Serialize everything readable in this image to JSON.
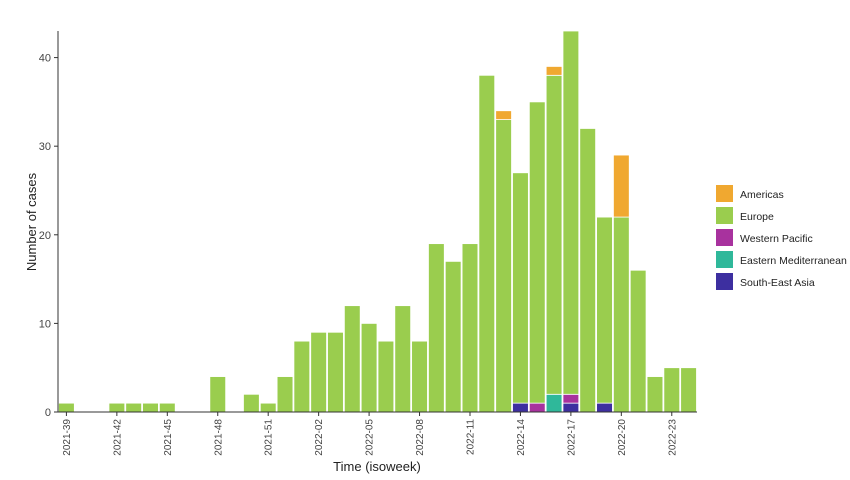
{
  "chart_data": {
    "type": "bar",
    "stacked": true,
    "xlabel": "Time (isoweek)",
    "ylabel": "Number of cases",
    "ylim": [
      0,
      43
    ],
    "yticks": [
      0,
      10,
      20,
      30,
      40
    ],
    "grid": false,
    "legend_position": "right",
    "categories": [
      "2021-39",
      "2021-40",
      "2021-41",
      "2021-42",
      "2021-43",
      "2021-44",
      "2021-45",
      "2021-46",
      "2021-47",
      "2021-48",
      "2021-49",
      "2021-50",
      "2021-51",
      "2021-52",
      "2022-01",
      "2022-02",
      "2022-03",
      "2022-04",
      "2022-05",
      "2022-06",
      "2022-07",
      "2022-08",
      "2022-09",
      "2022-10",
      "2022-11",
      "2022-12",
      "2022-13",
      "2022-14",
      "2022-15",
      "2022-16",
      "2022-17",
      "2022-18",
      "2022-19",
      "2022-20",
      "2022-21",
      "2022-22",
      "2022-23",
      "2022-24"
    ],
    "xtick_labels": [
      "2021-39",
      "2021-42",
      "2021-45",
      "2021-48",
      "2021-51",
      "2022-02",
      "2022-05",
      "2022-08",
      "2022-11",
      "2022-14",
      "2022-17",
      "2022-20",
      "2022-23"
    ],
    "series": [
      {
        "name": "South-East Asia",
        "color": "#3d2fa0",
        "values": [
          0,
          0,
          0,
          0,
          0,
          0,
          0,
          0,
          0,
          0,
          0,
          0,
          0,
          0,
          0,
          0,
          0,
          0,
          0,
          0,
          0,
          0,
          0,
          0,
          0,
          0,
          0,
          1,
          0,
          0,
          1,
          0,
          1,
          0,
          0,
          0,
          0,
          0
        ]
      },
      {
        "name": "Eastern Mediterranean",
        "color": "#2fb89a",
        "values": [
          0,
          0,
          0,
          0,
          0,
          0,
          0,
          0,
          0,
          0,
          0,
          0,
          0,
          0,
          0,
          0,
          0,
          0,
          0,
          0,
          0,
          0,
          0,
          0,
          0,
          0,
          0,
          0,
          0,
          2,
          0,
          0,
          0,
          0,
          0,
          0,
          0,
          0
        ]
      },
      {
        "name": "Western Pacific",
        "color": "#a8329e",
        "values": [
          0,
          0,
          0,
          0,
          0,
          0,
          0,
          0,
          0,
          0,
          0,
          0,
          0,
          0,
          0,
          0,
          0,
          0,
          0,
          0,
          0,
          0,
          0,
          0,
          0,
          0,
          0,
          0,
          1,
          0,
          1,
          0,
          0,
          0,
          0,
          0,
          0,
          0
        ]
      },
      {
        "name": "Europe",
        "color": "#9acd4e",
        "values": [
          1,
          0,
          0,
          1,
          1,
          1,
          1,
          0,
          0,
          4,
          0,
          2,
          1,
          4,
          8,
          9,
          9,
          12,
          10,
          8,
          12,
          8,
          19,
          17,
          19,
          38,
          33,
          26,
          34,
          36,
          41,
          32,
          21,
          22,
          16,
          4,
          5,
          5
        ]
      },
      {
        "name": "Americas",
        "color": "#f0a830",
        "values": [
          0,
          0,
          0,
          0,
          0,
          0,
          0,
          0,
          0,
          0,
          0,
          0,
          0,
          0,
          0,
          0,
          0,
          0,
          0,
          0,
          0,
          0,
          0,
          0,
          0,
          0,
          1,
          0,
          0,
          1,
          0,
          0,
          0,
          7,
          0,
          0,
          0,
          0
        ]
      }
    ],
    "legend_order": [
      "Americas",
      "Europe",
      "Western Pacific",
      "Eastern Mediterranean",
      "South-East Asia"
    ]
  }
}
